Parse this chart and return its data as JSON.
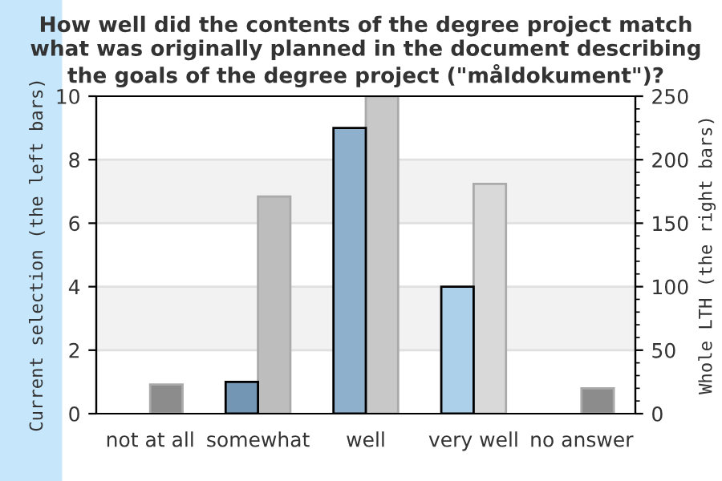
{
  "chart_data": {
    "type": "bar",
    "title": "How well did the contents of the degree project match\nwhat was originally planned in the document describing\nthe goals of the degree project (\"måldokument\")?",
    "categories": [
      "not at all",
      "somewhat",
      "well",
      "very well",
      "no answer"
    ],
    "ylabel": "Current selection (the left bars)",
    "y2label": "Whole LTH (the right bars)",
    "series": [
      {
        "colors": [
          "#7396b4",
          "#7396b4",
          "#8fb0cd",
          "#acd0ea",
          "#acd0ea"
        ],
        "values": [
          0,
          1,
          9,
          4,
          0
        ]
      },
      {
        "axis": "y2",
        "colors": [
          "#8c8c8c",
          "#bdbdbd",
          "#c8c8c8",
          "#d9d9d9",
          "#8c8c8c"
        ],
        "values": [
          23,
          171,
          250,
          181,
          20
        ]
      }
    ],
    "ylim": [
      0,
      10
    ],
    "yticks": [
      0,
      2,
      4,
      6,
      8,
      10
    ],
    "y2lim": [
      0,
      250
    ],
    "y2ticks": [
      0,
      50,
      100,
      150,
      200,
      250
    ],
    "grid": "y",
    "legend": false
  }
}
